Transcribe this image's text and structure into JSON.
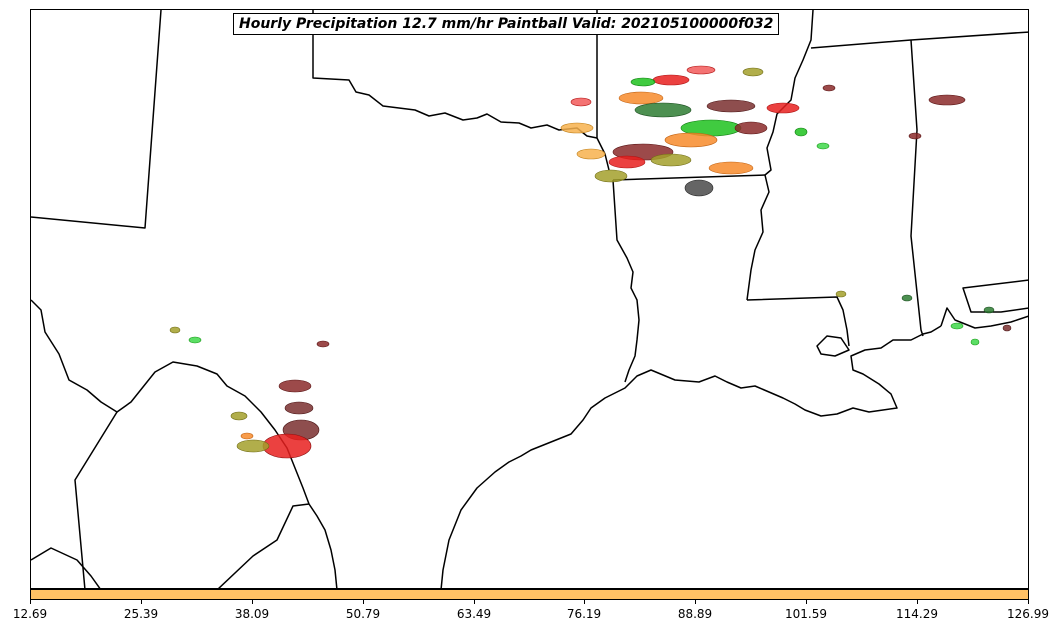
{
  "title": "Hourly Precipitation 12.7 mm/hr Paintball Valid: 202105100000f032",
  "colorbar": {
    "color": "#ffc165",
    "min": 12.69,
    "max": 126.99,
    "ticks": [
      "12.69",
      "25.39",
      "38.09",
      "50.79",
      "63.49",
      "76.19",
      "88.89",
      "101.59",
      "114.29",
      "126.99"
    ]
  },
  "paint_colors": {
    "red": "#e8201e",
    "light_red": "#f25a5a",
    "orange": "#f78b2c",
    "light_orange": "#f7b24d",
    "dark_red": "#8b2a2a",
    "brown": "#7a2f2f",
    "olive": "#a3a02c",
    "dark_olive": "#7d7a22",
    "green": "#1fc21f",
    "light_green": "#3fd84a",
    "dark_green": "#2e7d32",
    "gray": "#4a4a4a"
  }
}
